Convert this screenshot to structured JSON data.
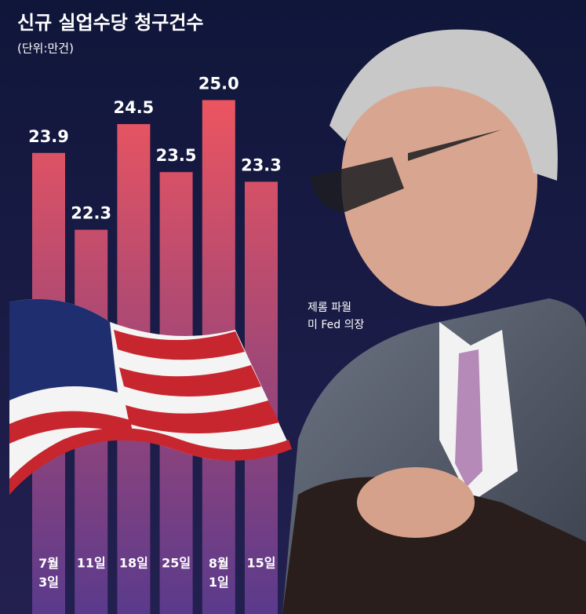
{
  "chart_data": {
    "type": "bar",
    "title": "신규 실업수당 청구건수",
    "subtitle": "(단위:만건)",
    "annotation": [
      "제롬 파월",
      "미 Fed 의장"
    ],
    "categories": [
      "7월 3일",
      "11일",
      "18일",
      "25일",
      "8월 1일",
      "15일"
    ],
    "values": [
      23.9,
      22.3,
      24.5,
      23.5,
      25.0,
      23.3
    ],
    "value_labels": [
      "23.9",
      "22.3",
      "24.5",
      "23.5",
      "25.0",
      "23.3"
    ],
    "color": "#ec5560",
    "ylim": [
      14.3,
      25.4
    ]
  }
}
